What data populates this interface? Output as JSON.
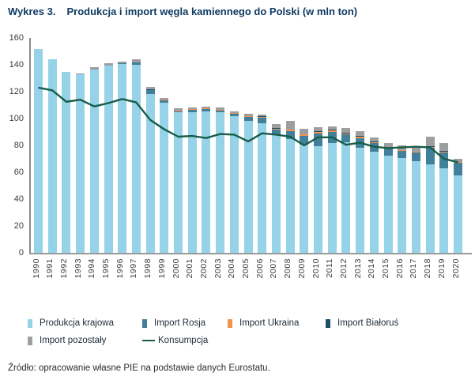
{
  "header": {
    "label": "Wykres 3.",
    "title": "Produkcja i import węgla kamiennego do Polski (w mln ton)"
  },
  "chart_data": {
    "type": "bar",
    "stacked": true,
    "title": "Produkcja i import węgla kamiennego do Polski (w mln ton)",
    "categories": [
      "1990",
      "1991",
      "1992",
      "1993",
      "1994",
      "1995",
      "1996",
      "1997",
      "1998",
      "1999",
      "2000",
      "2001",
      "2002",
      "2003",
      "2004",
      "2005",
      "2006",
      "2007",
      "2008",
      "2009",
      "2010",
      "2011",
      "2012",
      "2013",
      "2014",
      "2015",
      "2016",
      "2017",
      "2018",
      "2019",
      "2020"
    ],
    "series": [
      {
        "name": "Produkcja krajowa",
        "color": "#96d2e8",
        "values": [
          152,
          144,
          134.5,
          133,
          136.5,
          139.5,
          140.5,
          140,
          118.5,
          112,
          104.5,
          105,
          105.5,
          104.5,
          102,
          98.5,
          96.5,
          87.5,
          84.5,
          80.5,
          79.5,
          82,
          82.5,
          78,
          75.5,
          72.5,
          70.5,
          68,
          66,
          63,
          57.5
        ]
      },
      {
        "name": "Import Rosja",
        "color": "#40809b",
        "values": [
          0,
          0,
          0,
          0,
          0,
          0,
          0.5,
          1.5,
          2.5,
          1.5,
          1,
          1.5,
          1.5,
          1.5,
          1.5,
          2.5,
          4,
          4.5,
          6,
          6.5,
          9.5,
          8,
          5.5,
          7.5,
          6,
          5.5,
          5.5,
          7,
          12.5,
          12,
          9.5
        ]
      },
      {
        "name": "Import Ukraina",
        "color": "#f0934e",
        "values": [
          0,
          0,
          0,
          0,
          0,
          0,
          0,
          0,
          0,
          0.5,
          0.5,
          0.5,
          0.5,
          0.5,
          0.5,
          0.5,
          0.5,
          0.5,
          1,
          1,
          1,
          1,
          1,
          1,
          1,
          0.5,
          0.5,
          0.5,
          0.5,
          0.5,
          0.5
        ]
      },
      {
        "name": "Import Białoruś",
        "color": "#1d4f6b",
        "values": [
          0,
          0,
          0,
          0,
          0,
          0,
          0,
          0.5,
          0.5,
          0,
          0,
          0,
          0,
          0,
          0,
          0.5,
          0.5,
          0.5,
          0.5,
          0.5,
          0.5,
          0.5,
          0.5,
          0.5,
          0.5,
          0,
          0,
          0,
          0.5,
          0.5,
          0
        ]
      },
      {
        "name": "Import pozostały",
        "color": "#9c9ea0",
        "values": [
          0,
          0,
          0.5,
          0.5,
          1.5,
          1.5,
          1.5,
          2,
          2,
          1.5,
          1.5,
          1.5,
          1.5,
          2,
          1.5,
          1.5,
          1.5,
          3,
          6,
          4,
          3,
          2.5,
          3.5,
          3.5,
          3,
          3.5,
          3.5,
          4,
          7,
          6,
          2.5
        ]
      }
    ],
    "line_series": {
      "name": "Konsumpcja",
      "color": "#175c48",
      "values": [
        123,
        121,
        112.5,
        114,
        109,
        111.5,
        114.5,
        112,
        99,
        92,
        86.5,
        87,
        85.5,
        88.5,
        88,
        83,
        89,
        88,
        86.5,
        80,
        86,
        86,
        80.5,
        82,
        79,
        78,
        78.5,
        79,
        78.5,
        70,
        67.5
      ]
    },
    "ylabel": "",
    "xlabel": "",
    "ylim": [
      0,
      160
    ],
    "yticks": [
      0,
      20,
      40,
      60,
      80,
      100,
      120,
      140,
      160
    ],
    "grid": false,
    "legend_position": "bottom"
  },
  "legend": {
    "row1": [
      {
        "label": "Produkcja krajowa",
        "color": "#96d2e8",
        "type": "box"
      },
      {
        "label": "Import Rosja",
        "color": "#40809b",
        "type": "box"
      },
      {
        "label": "Import Ukraina",
        "color": "#f0934e",
        "type": "box"
      },
      {
        "label": "Import Białoruś",
        "color": "#1d4f6b",
        "type": "box"
      }
    ],
    "row2": [
      {
        "label": "Import pozostały",
        "color": "#9c9ea0",
        "type": "box"
      },
      {
        "label": "Konsumpcja",
        "color": "#175c48",
        "type": "line"
      }
    ]
  },
  "footer": {
    "source": "Źródło: opracowanie własne PIE na podstawie danych Eurostatu."
  }
}
